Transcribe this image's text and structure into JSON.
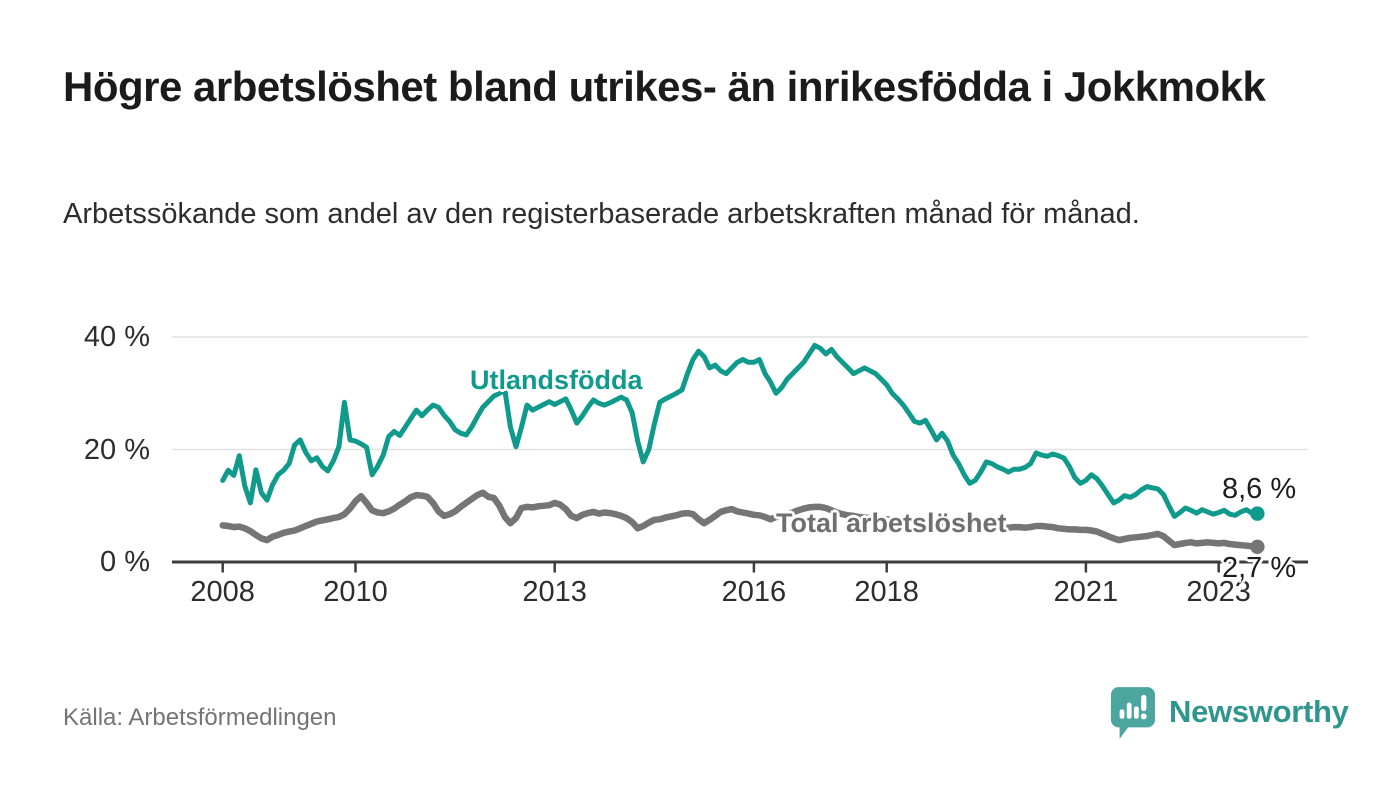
{
  "header": {
    "title": "Högre arbetslöshet bland utrikes- än inrikesfödda i Jokkmokk",
    "subtitle": "Arbetssökande som andel av den registerbaserade arbetskraften månad för månad."
  },
  "chart_data": {
    "type": "line",
    "title": "Högre arbetslöshet bland utrikes- än inrikesfödda i Jokkmokk",
    "x_unit": "month",
    "x_start": "2008-01",
    "x_end": "2023-08",
    "ylim": [
      0,
      42
    ],
    "grid": "horizontal",
    "y_axis": {
      "ticks": [
        {
          "label": "40 %",
          "value": 40
        },
        {
          "label": "20 %",
          "value": 20
        },
        {
          "label": "0 %",
          "value": 0
        }
      ]
    },
    "x_axis": {
      "ticks": [
        {
          "label": "2008",
          "year": 2008
        },
        {
          "label": "2010",
          "year": 2010
        },
        {
          "label": "2013",
          "year": 2013
        },
        {
          "label": "2016",
          "year": 2016
        },
        {
          "label": "2018",
          "year": 2018
        },
        {
          "label": "2021",
          "year": 2021
        },
        {
          "label": "2023",
          "year": 2023
        }
      ]
    },
    "series": [
      {
        "name": "Utlandsfödda",
        "color": "#0f9a8c",
        "end_label": "8,6 %",
        "end_value": 8.6,
        "values": [
          14.5,
          16.3,
          15.4,
          18.9,
          13.5,
          10.5,
          16.4,
          12.3,
          11.0,
          13.7,
          15.5,
          16.3,
          17.5,
          20.8,
          21.7,
          19.5,
          18.0,
          18.5,
          17.0,
          16.2,
          18.0,
          20.5,
          28.4,
          21.7,
          21.5,
          21.0,
          20.4,
          15.5,
          17.0,
          19.0,
          22.3,
          23.2,
          22.5,
          24.0,
          25.5,
          27.0,
          26.0,
          27.0,
          27.9,
          27.5,
          26.1,
          25.0,
          23.5,
          22.9,
          22.6,
          24.0,
          25.8,
          27.5,
          28.5,
          29.5,
          30.0,
          30.5,
          24.0,
          20.5,
          24.0,
          27.9,
          27.0,
          27.5,
          28.0,
          28.5,
          28.0,
          28.5,
          29.0,
          27.0,
          24.7,
          26.0,
          27.5,
          28.8,
          28.2,
          27.9,
          28.3,
          28.8,
          29.3,
          28.8,
          26.5,
          21.5,
          17.8,
          20.0,
          24.5,
          28.4,
          29.0,
          29.5,
          30.0,
          30.6,
          33.5,
          36.0,
          37.5,
          36.5,
          34.5,
          35.0,
          34.0,
          33.5,
          34.5,
          35.5,
          36.0,
          35.5,
          35.5,
          36.0,
          33.5,
          32.0,
          30.0,
          31.0,
          32.5,
          33.5,
          34.5,
          35.5,
          37.0,
          38.5,
          38.0,
          37.0,
          37.8,
          36.5,
          35.5,
          34.5,
          33.5,
          34.0,
          34.5,
          34.0,
          33.5,
          32.5,
          31.5,
          30.0,
          29.0,
          27.9,
          26.5,
          25.0,
          24.7,
          25.2,
          23.5,
          21.7,
          22.9,
          21.5,
          19.0,
          17.5,
          15.5,
          14.0,
          14.5,
          16.0,
          17.8,
          17.5,
          16.9,
          16.5,
          16.0,
          16.5,
          16.5,
          16.8,
          17.5,
          19.4,
          19.0,
          18.8,
          19.2,
          18.9,
          18.5,
          17.0,
          15.0,
          14.0,
          14.5,
          15.5,
          14.8,
          13.5,
          12.0,
          10.5,
          11.0,
          11.8,
          11.5,
          12.0,
          12.8,
          13.4,
          13.2,
          13.0,
          12.0,
          10.0,
          8.1,
          8.8,
          9.6,
          9.2,
          8.7,
          9.3,
          8.9,
          8.5,
          8.8,
          9.2,
          8.5,
          8.3,
          8.9,
          9.3,
          8.7,
          8.6
        ]
      },
      {
        "name": "Total arbetslöshet",
        "color": "#757575",
        "end_label": "2,7 %",
        "end_value": 2.7,
        "values": [
          6.5,
          6.4,
          6.2,
          6.3,
          6.0,
          5.5,
          4.8,
          4.2,
          3.9,
          4.5,
          4.8,
          5.2,
          5.4,
          5.6,
          6.0,
          6.4,
          6.8,
          7.2,
          7.4,
          7.6,
          7.8,
          8.0,
          8.5,
          9.5,
          10.8,
          11.7,
          10.5,
          9.2,
          8.8,
          8.7,
          9.0,
          9.5,
          10.2,
          10.8,
          11.5,
          11.9,
          11.8,
          11.6,
          10.5,
          9.0,
          8.2,
          8.5,
          9.0,
          9.8,
          10.5,
          11.2,
          11.9,
          12.3,
          11.6,
          11.4,
          10.0,
          8.0,
          6.9,
          7.8,
          9.6,
          9.8,
          9.7,
          9.9,
          10.0,
          10.1,
          10.5,
          10.2,
          9.4,
          8.2,
          7.8,
          8.4,
          8.7,
          8.9,
          8.6,
          8.8,
          8.7,
          8.5,
          8.2,
          7.8,
          7.1,
          6.0,
          6.4,
          7.0,
          7.5,
          7.6,
          7.9,
          8.1,
          8.3,
          8.6,
          8.7,
          8.5,
          7.6,
          6.9,
          7.5,
          8.2,
          8.9,
          9.2,
          9.4,
          9.0,
          8.8,
          8.6,
          8.4,
          8.3,
          8.0,
          7.6,
          8.0,
          8.2,
          8.5,
          8.8,
          9.2,
          9.5,
          9.7,
          9.8,
          9.8,
          9.6,
          9.2,
          8.8,
          8.5,
          8.3,
          8.2,
          8.0,
          7.9,
          7.8,
          7.8,
          7.7,
          7.6,
          7.5,
          7.3,
          7.0,
          6.8,
          6.7,
          6.8,
          6.9,
          6.8,
          6.7,
          6.6,
          6.5,
          6.4,
          6.3,
          6.2,
          6.0,
          5.9,
          5.8,
          5.9,
          6.0,
          6.0,
          6.1,
          6.1,
          6.2,
          6.2,
          6.1,
          6.2,
          6.4,
          6.4,
          6.3,
          6.2,
          6.0,
          5.9,
          5.8,
          5.8,
          5.7,
          5.7,
          5.6,
          5.4,
          5.0,
          4.6,
          4.2,
          3.9,
          4.1,
          4.3,
          4.4,
          4.5,
          4.6,
          4.8,
          5.0,
          4.6,
          3.8,
          3.0,
          3.2,
          3.4,
          3.5,
          3.3,
          3.4,
          3.5,
          3.4,
          3.3,
          3.4,
          3.2,
          3.1,
          3.0,
          2.9,
          2.8,
          2.7
        ]
      }
    ]
  },
  "footer": {
    "source": "Källa: Arbetsförmedlingen",
    "logo_text": "Newsworthy"
  },
  "colors": {
    "teal_line": "#0f9a8c",
    "gray_line": "#757575",
    "gray_label": "#6f6f6f",
    "axis": "#3c3c3c",
    "gridline": "#e1e1e1",
    "logo_badge": "#4ba6a0",
    "logo_word": "#2f968e"
  }
}
